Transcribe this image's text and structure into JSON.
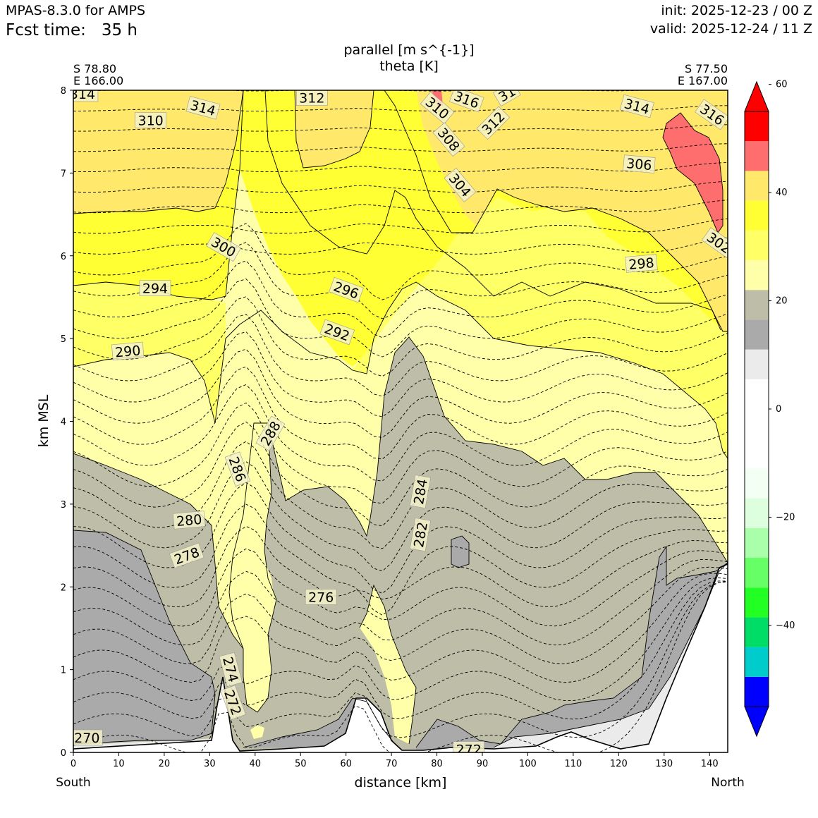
{
  "header": {
    "model": "MPAS-8.3.0 for AMPS",
    "fcst_label": "Fcst time:",
    "fcst_value": "35 h",
    "fcst_full": "Fcst time:   35 h",
    "init": "init: 2025-12-23 / 00 Z",
    "valid": "valid: 2025-12-24 / 11 Z"
  },
  "location": {
    "left_lat": "S 78.80",
    "left_lon": "E 166.00",
    "right_lat": "S 77.50",
    "right_lon": "E 167.00"
  },
  "direction": {
    "left": "South",
    "right": "North"
  },
  "chart_data": {
    "type": "cross-section (filled contour + line contour)",
    "title": "parallel [m s^{-1}]",
    "subtitle": "theta [K]",
    "xlabel": "distance [km]",
    "ylabel": "km MSL",
    "xlim": [
      0,
      144
    ],
    "ylim": [
      0,
      8
    ],
    "xticks": [
      0,
      10,
      20,
      30,
      40,
      50,
      60,
      70,
      80,
      90,
      100,
      110,
      120,
      130,
      140
    ],
    "yticks": [
      0,
      1,
      2,
      3,
      4,
      5,
      6,
      7,
      8
    ],
    "colorbar": {
      "levels": [
        -60,
        -55,
        -50,
        -45,
        -40,
        -35,
        -30,
        -25,
        -20,
        -15,
        -10,
        -5,
        0,
        5,
        10,
        15,
        20,
        25,
        30,
        35,
        40,
        45,
        50,
        55,
        60
      ],
      "tick_labels": [
        "60",
        "40",
        "20",
        "0",
        "−20",
        "−40"
      ],
      "tick_values": [
        60,
        40,
        20,
        0,
        -20,
        -40
      ],
      "colors_bottom_to_top": [
        "#0000ff",
        "#0000ff",
        "#0000ff",
        "#00cccc",
        "#00dd66",
        "#22ff22",
        "#66ff66",
        "#aaffaa",
        "#ddffdd",
        "#f2fff2",
        "#ffffff",
        "#ffffff",
        "#ffffff",
        "#ebebeb",
        "#aaaaaa",
        "#bebea8",
        "#ffffaa",
        "#ffff66",
        "#ffff33",
        "#ffe86a",
        "#ff6e6e",
        "#ff0000"
      ]
    },
    "wind_regions": [
      {
        "range": "25-30",
        "color": "#ffffaa"
      },
      {
        "range": "30-35",
        "color": "#ffff66"
      },
      {
        "range": "35-40",
        "color": "#ffff33"
      },
      {
        "range": "40-45",
        "color": "#ffe86a"
      },
      {
        "range": "45-50",
        "color": "#ff6e6e"
      },
      {
        "range": "20-25",
        "color": "#bebea8"
      },
      {
        "range": "15-20",
        "color": "#aaaaaa"
      },
      {
        "range": "10-15",
        "color": "#ebebeb"
      },
      {
        "range": "5-10",
        "color": "#ffffff"
      },
      {
        "range": "0-5",
        "color": "#ffffff"
      }
    ],
    "theta_labels": [
      {
        "value": "314",
        "x": 2,
        "y": 7.95,
        "angle": 0
      },
      {
        "value": "314",
        "x": 28.5,
        "y": 7.78,
        "angle": 15
      },
      {
        "value": "312",
        "x": 52.5,
        "y": 7.9,
        "angle": 0
      },
      {
        "value": "316",
        "x": 86.5,
        "y": 7.88,
        "angle": 20
      },
      {
        "value": "31",
        "x": 95.5,
        "y": 7.95,
        "angle": -30
      },
      {
        "value": "310",
        "x": 80,
        "y": 7.78,
        "angle": 40
      },
      {
        "value": "312",
        "x": 92.5,
        "y": 7.6,
        "angle": -45
      },
      {
        "value": "308",
        "x": 82.5,
        "y": 7.4,
        "angle": 50
      },
      {
        "value": "314",
        "x": 124,
        "y": 7.8,
        "angle": 15
      },
      {
        "value": "316",
        "x": 140.5,
        "y": 7.7,
        "angle": 35
      },
      {
        "value": "310",
        "x": 17,
        "y": 7.63,
        "angle": 0
      },
      {
        "value": "306",
        "x": 124.5,
        "y": 7.1,
        "angle": 5
      },
      {
        "value": "304",
        "x": 85,
        "y": 6.85,
        "angle": 50
      },
      {
        "value": "302",
        "x": 142,
        "y": 6.15,
        "angle": 35
      },
      {
        "value": "300",
        "x": 33,
        "y": 6.1,
        "angle": 30
      },
      {
        "value": "298",
        "x": 125,
        "y": 5.9,
        "angle": -5
      },
      {
        "value": "294",
        "x": 18,
        "y": 5.6,
        "angle": 0
      },
      {
        "value": "296",
        "x": 60,
        "y": 5.58,
        "angle": 20
      },
      {
        "value": "292",
        "x": 58,
        "y": 5.07,
        "angle": 20
      },
      {
        "value": "290",
        "x": 12,
        "y": 4.84,
        "angle": -5
      },
      {
        "value": "288",
        "x": 43.5,
        "y": 3.85,
        "angle": -60
      },
      {
        "value": "286",
        "x": 36,
        "y": 3.42,
        "angle": 70
      },
      {
        "value": "284",
        "x": 76.5,
        "y": 3.15,
        "angle": -80
      },
      {
        "value": "282",
        "x": 76.5,
        "y": 2.63,
        "angle": -80
      },
      {
        "value": "280",
        "x": 25.5,
        "y": 2.8,
        "angle": -5
      },
      {
        "value": "278",
        "x": 25,
        "y": 2.37,
        "angle": -20
      },
      {
        "value": "276",
        "x": 54.5,
        "y": 1.87,
        "angle": 0
      },
      {
        "value": "274",
        "x": 34.5,
        "y": 1.0,
        "angle": 75
      },
      {
        "value": "272",
        "x": 35,
        "y": 0.6,
        "angle": 70
      },
      {
        "value": "270",
        "x": 3,
        "y": 0.17,
        "angle": 0
      },
      {
        "value": "272",
        "x": 87,
        "y": 0.03,
        "angle": 0
      }
    ]
  }
}
